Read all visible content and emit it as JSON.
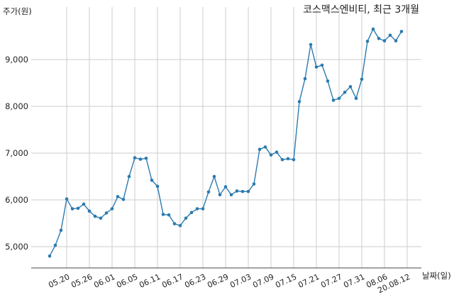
{
  "chart_data": {
    "type": "line",
    "title": "코스맥스엔비티, 최근 3개월",
    "xlabel": "날짜(일)",
    "ylabel": "주가(원)",
    "grid": true,
    "ylim": [
      4550,
      9950
    ],
    "yticks": [
      5000,
      6000,
      7000,
      8000,
      9000
    ],
    "ytick_labels": [
      "5,000",
      "6,000",
      "7,000",
      "8,000",
      "9,000"
    ],
    "xtick_labels": [
      "05.20",
      "05.26",
      "06.01",
      "06.05",
      "06.11",
      "06.17",
      "06.23",
      "06.29",
      "07.03",
      "07.09",
      "07.15",
      "07.21",
      "07.27",
      "07.31",
      "08.06",
      "20.08.12"
    ],
    "xtick_index": [
      3,
      7,
      11,
      15,
      19,
      23,
      27,
      31,
      35,
      39,
      43,
      47,
      51,
      55,
      59,
      63
    ],
    "series": [
      {
        "color": "#2b7bb0",
        "values": [
          4800,
          5030,
          5350,
          6020,
          5810,
          5820,
          5910,
          5760,
          5650,
          5610,
          5720,
          5810,
          6070,
          6010,
          6500,
          6900,
          6870,
          6890,
          6420,
          6290,
          5690,
          5680,
          5490,
          5450,
          5610,
          5730,
          5810,
          5810,
          6170,
          6500,
          6110,
          6280,
          6110,
          6190,
          6180,
          6180,
          6340,
          7080,
          7130,
          6960,
          7020,
          6860,
          6880,
          6860,
          8100,
          8590,
          9320,
          8840,
          8880,
          8540,
          8130,
          8170,
          8300,
          8420,
          8170,
          8580,
          9390,
          9650,
          9450,
          9400,
          9520,
          9400,
          9600
        ]
      }
    ]
  }
}
